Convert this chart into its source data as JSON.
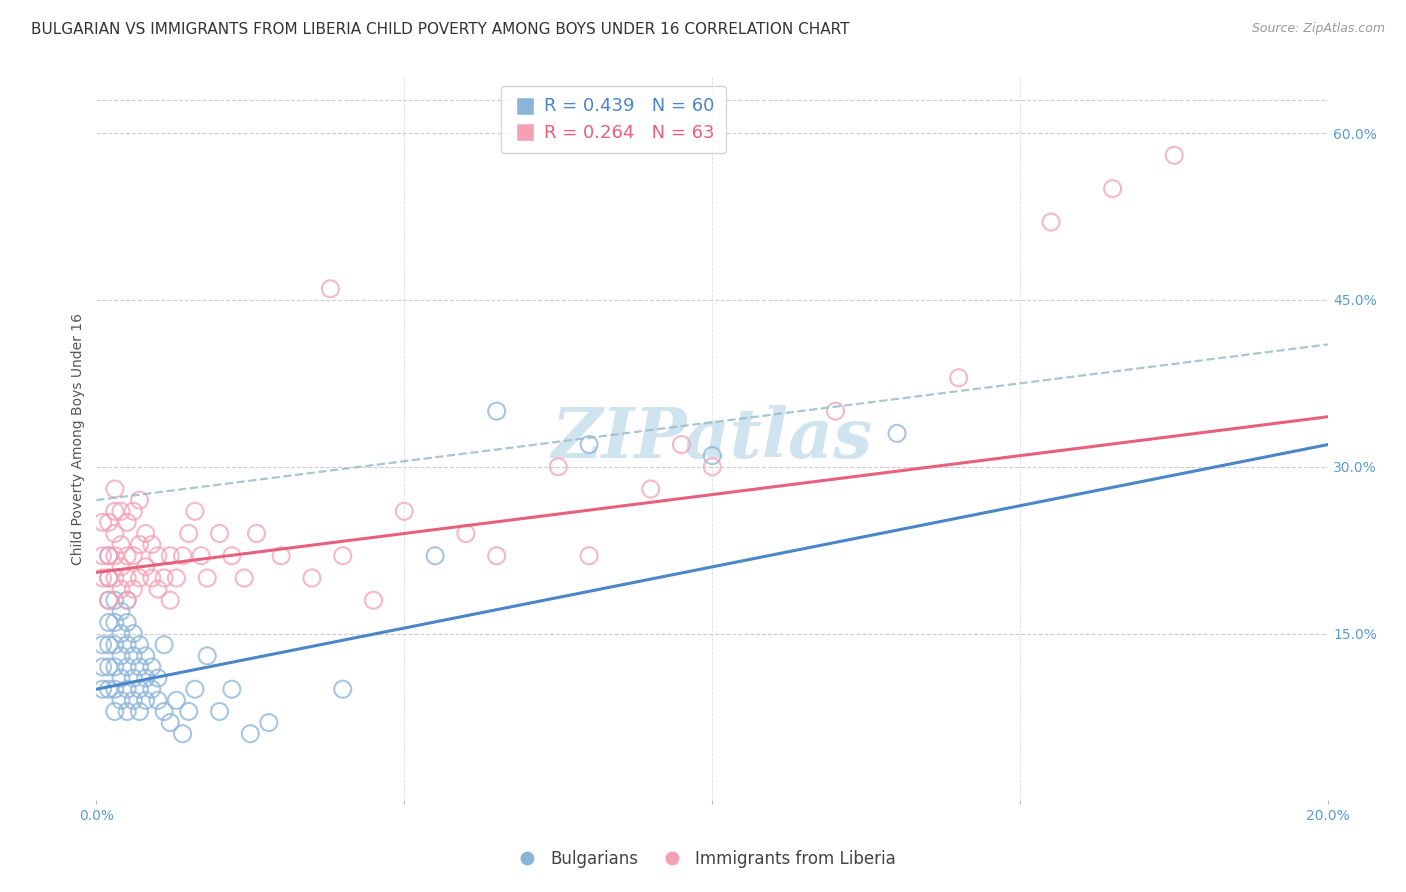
{
  "title": "BULGARIAN VS IMMIGRANTS FROM LIBERIA CHILD POVERTY AMONG BOYS UNDER 16 CORRELATION CHART",
  "source": "Source: ZipAtlas.com",
  "ylabel": "Child Poverty Among Boys Under 16",
  "r_bulgarian": 0.439,
  "n_bulgarian": 60,
  "r_liberia": 0.264,
  "n_liberia": 63,
  "legend_bulgarian": "Bulgarians",
  "legend_liberia": "Immigrants from Liberia",
  "color_bulgarian": "#8ab4d8",
  "color_liberia": "#f4a0b5",
  "color_line_bulgarian": "#4a86c8",
  "color_line_liberia": "#e86080",
  "color_dashed": "#9abccc",
  "color_axis_labels": "#5b9bd5",
  "color_title": "#333333",
  "color_source": "#999999",
  "bg_color": "#ffffff",
  "grid_color": "#cccccc",
  "xmin": 0.0,
  "xmax": 0.2,
  "ymin": 0.0,
  "ymax": 0.65,
  "yticks": [
    0.15,
    0.3,
    0.45,
    0.6
  ],
  "ytick_labels": [
    "15.0%",
    "30.0%",
    "45.0%",
    "60.0%"
  ],
  "xticks": [
    0.0,
    0.05,
    0.1,
    0.15,
    0.2
  ],
  "xtick_labels": [
    "0.0%",
    "",
    "",
    "",
    "20.0%"
  ],
  "bulgarian_x": [
    0.001,
    0.001,
    0.001,
    0.002,
    0.002,
    0.002,
    0.002,
    0.002,
    0.002,
    0.002,
    0.003,
    0.003,
    0.003,
    0.003,
    0.003,
    0.003,
    0.004,
    0.004,
    0.004,
    0.004,
    0.004,
    0.005,
    0.005,
    0.005,
    0.005,
    0.005,
    0.005,
    0.006,
    0.006,
    0.006,
    0.006,
    0.007,
    0.007,
    0.007,
    0.007,
    0.008,
    0.008,
    0.008,
    0.009,
    0.009,
    0.01,
    0.01,
    0.011,
    0.011,
    0.012,
    0.013,
    0.014,
    0.015,
    0.016,
    0.018,
    0.02,
    0.022,
    0.025,
    0.028,
    0.04,
    0.055,
    0.065,
    0.08,
    0.1,
    0.13
  ],
  "bulgarian_y": [
    0.1,
    0.12,
    0.14,
    0.1,
    0.12,
    0.14,
    0.16,
    0.18,
    0.2,
    0.22,
    0.08,
    0.1,
    0.12,
    0.14,
    0.16,
    0.18,
    0.09,
    0.11,
    0.13,
    0.15,
    0.17,
    0.08,
    0.1,
    0.12,
    0.14,
    0.16,
    0.18,
    0.09,
    0.11,
    0.13,
    0.15,
    0.08,
    0.1,
    0.12,
    0.14,
    0.09,
    0.11,
    0.13,
    0.1,
    0.12,
    0.09,
    0.11,
    0.08,
    0.14,
    0.07,
    0.09,
    0.06,
    0.08,
    0.1,
    0.13,
    0.08,
    0.1,
    0.06,
    0.07,
    0.1,
    0.22,
    0.35,
    0.32,
    0.31,
    0.33
  ],
  "liberia_x": [
    0.001,
    0.001,
    0.001,
    0.002,
    0.002,
    0.002,
    0.002,
    0.003,
    0.003,
    0.003,
    0.003,
    0.003,
    0.004,
    0.004,
    0.004,
    0.004,
    0.005,
    0.005,
    0.005,
    0.005,
    0.006,
    0.006,
    0.006,
    0.007,
    0.007,
    0.007,
    0.008,
    0.008,
    0.009,
    0.009,
    0.01,
    0.01,
    0.011,
    0.012,
    0.012,
    0.013,
    0.014,
    0.015,
    0.016,
    0.017,
    0.018,
    0.02,
    0.022,
    0.024,
    0.026,
    0.03,
    0.035,
    0.038,
    0.04,
    0.045,
    0.05,
    0.06,
    0.065,
    0.075,
    0.08,
    0.09,
    0.095,
    0.1,
    0.12,
    0.14,
    0.155,
    0.165,
    0.175
  ],
  "liberia_y": [
    0.2,
    0.22,
    0.25,
    0.18,
    0.2,
    0.22,
    0.25,
    0.2,
    0.22,
    0.24,
    0.26,
    0.28,
    0.19,
    0.21,
    0.23,
    0.26,
    0.18,
    0.2,
    0.22,
    0.25,
    0.19,
    0.22,
    0.26,
    0.2,
    0.23,
    0.27,
    0.21,
    0.24,
    0.2,
    0.23,
    0.19,
    0.22,
    0.2,
    0.18,
    0.22,
    0.2,
    0.22,
    0.24,
    0.26,
    0.22,
    0.2,
    0.24,
    0.22,
    0.2,
    0.24,
    0.22,
    0.2,
    0.46,
    0.22,
    0.18,
    0.26,
    0.24,
    0.22,
    0.3,
    0.22,
    0.28,
    0.32,
    0.3,
    0.35,
    0.38,
    0.52,
    0.55,
    0.58
  ],
  "watermark": "ZIPatlas",
  "watermark_color": "#d0e4f0",
  "title_fontsize": 11,
  "axis_label_fontsize": 10,
  "tick_fontsize": 10,
  "legend_fontsize": 12,
  "source_fontsize": 9,
  "blue_line_intercept": 0.1,
  "blue_line_slope": 1.1,
  "pink_line_intercept": 0.205,
  "pink_line_slope": 0.7,
  "dashed_line_intercept": 0.27,
  "dashed_line_slope": 0.7
}
